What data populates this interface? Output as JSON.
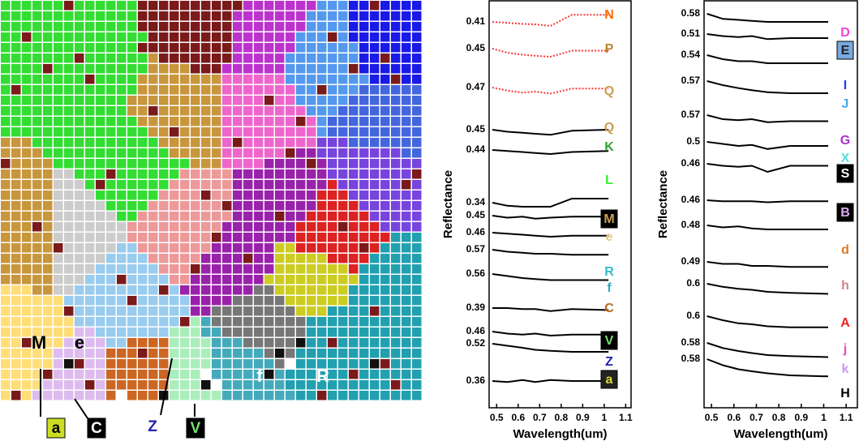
{
  "chart_data": [
    {
      "type": "map",
      "labels": [
        "M",
        "e",
        "f",
        "R"
      ],
      "pointers": [
        "a",
        "C",
        "Z",
        "V"
      ]
    },
    {
      "type": "line",
      "ylabel": "Reflectance",
      "xlabel": "Wavelength(um)",
      "xlim": [
        0.465,
        1.125
      ],
      "xticks": [
        0.5,
        0.6,
        0.7,
        0.8,
        0.9,
        1,
        1.1
      ],
      "x": [
        0.48,
        0.55,
        0.62,
        0.68,
        0.75,
        0.85,
        1.02
      ],
      "series": [
        {
          "name": "N",
          "color": "#ff6a00",
          "line_color": "#ff3333",
          "dotted": true,
          "values": [
            0.41,
            0.405,
            0.4,
            0.398,
            0.39,
            0.445,
            0.445
          ]
        },
        {
          "name": "P",
          "color": "#b8862a",
          "line_color": "#ff3333",
          "dotted": true,
          "values": [
            0.45,
            0.43,
            0.42,
            0.415,
            0.41,
            0.44,
            0.44
          ]
        },
        {
          "name": "Q",
          "color": "#c8a050",
          "line_color": "#ff3333",
          "dotted": true,
          "values": [
            0.47,
            0.455,
            0.445,
            0.45,
            0.44,
            0.465,
            0.465
          ]
        },
        {
          "name": "Q",
          "color": "#c8a050",
          "line_color": "#000000",
          "values": [
            0.45,
            0.44,
            0.435,
            0.43,
            0.425,
            0.445,
            0.45
          ]
        },
        {
          "name": "K",
          "color": "#33a033",
          "line_color": "#000000",
          "values": [
            0.44,
            0.435,
            0.43,
            0.425,
            0.42,
            0.43,
            0.435
          ]
        },
        {
          "name": "L",
          "color": "#33ee33",
          "line_color": "#000000",
          "values": [
            0.34,
            0.325,
            0.32,
            0.32,
            0.32,
            0.36,
            0.36
          ]
        },
        {
          "name": "M",
          "color": "#c8a050",
          "box": "#000000",
          "line_color": "#000000",
          "values": [
            0.45,
            0.44,
            0.445,
            0.435,
            0.44,
            0.445,
            0.445
          ]
        },
        {
          "name": "e",
          "color": "#e8c888",
          "line_color": "#000000",
          "values": [
            0.46,
            0.455,
            0.45,
            0.445,
            0.44,
            0.445,
            0.445
          ]
        },
        {
          "name": "R",
          "color": "#33bbcc",
          "line_color": "#000000",
          "values": [
            0.57,
            0.56,
            0.555,
            0.55,
            0.55,
            0.545,
            0.545
          ]
        },
        {
          "name": "f",
          "color": "#33aabb",
          "line_color": "#000000",
          "values": [
            0.56,
            0.55,
            0.54,
            0.535,
            0.53,
            0.53,
            0.53
          ]
        },
        {
          "name": "C",
          "color": "#b86a20",
          "line_color": "#000000",
          "values": [
            0.39,
            0.39,
            0.385,
            0.385,
            0.375,
            0.385,
            0.38
          ]
        },
        {
          "name": "V",
          "color": "#77dd77",
          "box": "#000000",
          "line_color": "#000000",
          "values": [
            0.46,
            0.45,
            0.445,
            0.45,
            0.44,
            0.445,
            0.445
          ]
        },
        {
          "name": "Z",
          "color": "#2222aa",
          "line_color": "#000000",
          "values": [
            0.52,
            0.51,
            0.5,
            0.49,
            0.485,
            0.48,
            0.48
          ]
        },
        {
          "name": "a",
          "color": "#dddd33",
          "box": "#222222",
          "line_color": "#000000",
          "values": [
            0.36,
            0.355,
            0.365,
            0.355,
            0.365,
            0.36,
            0.36
          ]
        }
      ]
    },
    {
      "type": "line",
      "ylabel": "Reflectance",
      "xlabel": "Wavelength(um)",
      "xlim": [
        0.467,
        1.15
      ],
      "xticks": [
        0.5,
        0.6,
        0.7,
        0.8,
        0.9,
        1,
        1.1
      ],
      "x": [
        0.48,
        0.55,
        0.62,
        0.68,
        0.75,
        0.85,
        1.02
      ],
      "series": [
        {
          "name": "D",
          "color": "#ee44dd",
          "line_color": "#000000",
          "values": [
            0.58,
            0.555,
            0.55,
            0.545,
            0.54,
            0.54,
            0.54
          ]
        },
        {
          "name": "E",
          "color": "#222222",
          "box": "#77aadd",
          "line_color": "#000000",
          "values": [
            0.51,
            0.5,
            0.495,
            0.5,
            0.485,
            0.49,
            0.49
          ]
        },
        {
          "name": "I",
          "color": "#2244dd",
          "line_color": "#000000",
          "values": [
            0.54,
            0.52,
            0.51,
            0.51,
            0.5,
            0.5,
            0.5
          ]
        },
        {
          "name": "J",
          "color": "#44aaee",
          "line_color": "#000000",
          "values": [
            0.57,
            0.55,
            0.535,
            0.525,
            0.515,
            0.51,
            0.51
          ]
        },
        {
          "name": "G",
          "color": "#aa33cc",
          "line_color": "#000000",
          "values": [
            0.57,
            0.55,
            0.545,
            0.55,
            0.535,
            0.54,
            0.54
          ]
        },
        {
          "name": "X",
          "color": "#55dddd",
          "line_color": "#000000",
          "values": [
            0.5,
            0.49,
            0.48,
            0.485,
            0.465,
            0.48,
            0.48
          ]
        },
        {
          "name": "S",
          "color": "#ffffff",
          "box": "#000000",
          "line_color": "#000000",
          "values": [
            0.46,
            0.45,
            0.445,
            0.45,
            0.42,
            0.45,
            0.45
          ]
        },
        {
          "name": "B",
          "color": "#ddaaee",
          "box": "#000000",
          "line_color": "#000000",
          "values": [
            0.46,
            0.455,
            0.455,
            0.455,
            0.45,
            0.455,
            0.455
          ]
        },
        {
          "name": "d",
          "color": "#dd7722",
          "line_color": "#000000",
          "values": [
            0.48,
            0.47,
            0.475,
            0.465,
            0.46,
            0.46,
            0.46
          ]
        },
        {
          "name": "h",
          "color": "#cc8888",
          "line_color": "#000000",
          "values": [
            0.49,
            0.48,
            0.48,
            0.47,
            0.47,
            0.465,
            0.465
          ]
        },
        {
          "name": "A",
          "color": "#ee2222",
          "line_color": "#000000",
          "values": [
            0.6,
            0.585,
            0.575,
            0.57,
            0.56,
            0.555,
            0.55
          ]
        },
        {
          "name": "j",
          "color": "#ee44bb",
          "line_color": "#000000",
          "values": [
            0.6,
            0.58,
            0.565,
            0.56,
            0.55,
            0.545,
            0.545
          ]
        },
        {
          "name": "k",
          "color": "#cc99ee",
          "line_color": "#000000",
          "values": [
            0.58,
            0.555,
            0.54,
            0.53,
            0.52,
            0.515,
            0.51
          ]
        },
        {
          "name": "H",
          "color": "#000000",
          "line_color": "#000000",
          "values": [
            0.58,
            0.55,
            0.53,
            0.52,
            0.51,
            0.5,
            0.495
          ]
        }
      ]
    }
  ]
}
